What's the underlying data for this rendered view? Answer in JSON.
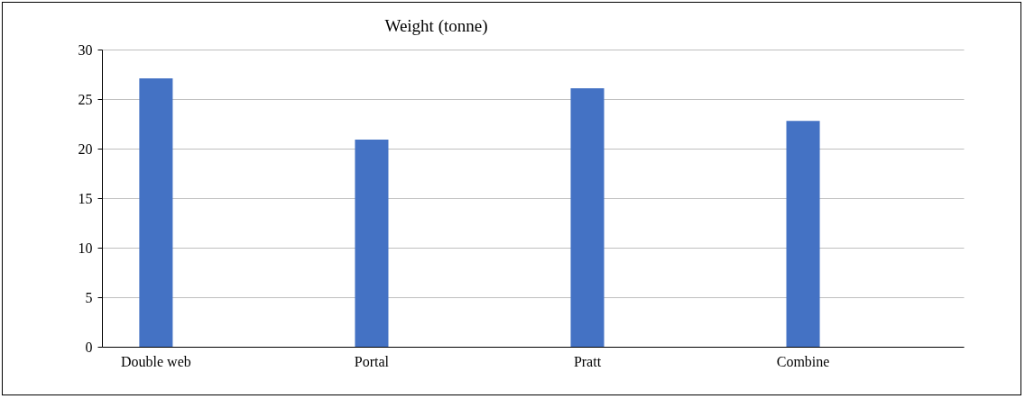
{
  "chart_data": {
    "type": "bar",
    "title": "Weight (tonne)",
    "categories": [
      "Double web",
      "Portal",
      "Pratt",
      "Combine"
    ],
    "values": [
      27.1,
      20.9,
      26.1,
      22.8
    ],
    "color": "#4472c4",
    "ylim": [
      0,
      30
    ],
    "yticks": [
      0,
      5,
      10,
      15,
      20,
      25,
      30
    ],
    "grid": "y"
  }
}
